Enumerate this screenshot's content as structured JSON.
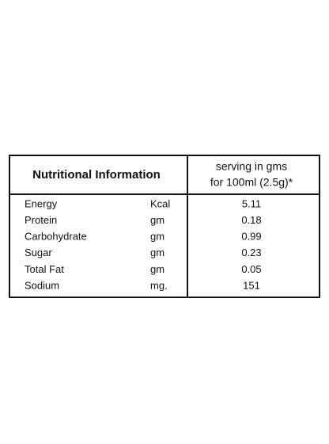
{
  "table": {
    "header": {
      "title": "Nutritional Information",
      "serving": [
        "serving in gms",
        "for 100ml (2.5g)*"
      ]
    },
    "rows": [
      [
        "Energy",
        "Kcal",
        5.11
      ],
      [
        "Protein",
        "gm",
        0.18
      ],
      [
        "Carbohydrate",
        "gm",
        0.99
      ],
      [
        "Sugar",
        "gm",
        0.23
      ],
      [
        "Total Fat",
        "gm",
        0.05
      ],
      [
        "Sodium",
        "mg.",
        151
      ]
    ]
  }
}
